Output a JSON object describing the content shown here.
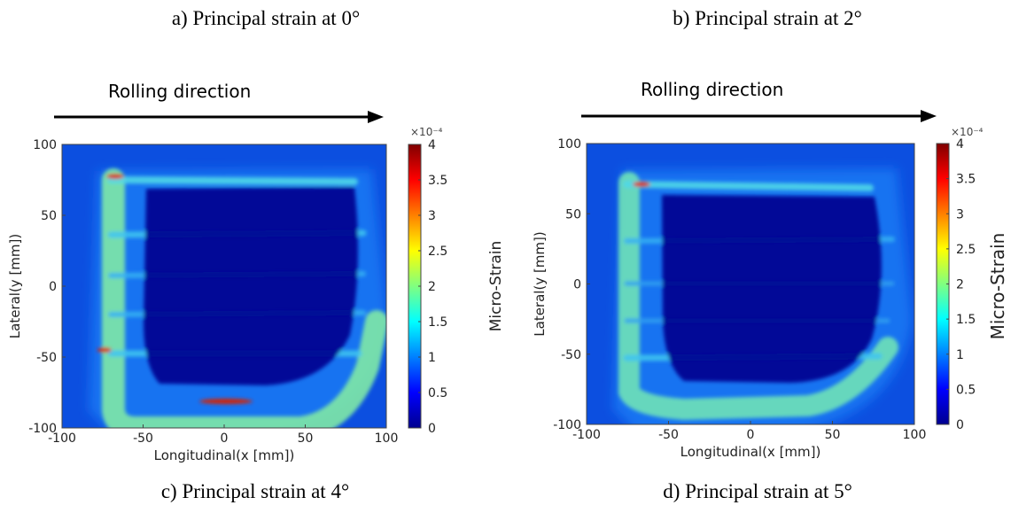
{
  "captions": {
    "top_left": "a)   Principal strain at 0°",
    "top_right": "b)   Principal strain at 2°",
    "bottom_left": "c) Principal strain at 4°",
    "bottom_right": "d)   Principal strain at 5°"
  },
  "colors": {
    "background_field": "#0c4fe0",
    "colormap": [
      "#00008f",
      "#0000ff",
      "#0080ff",
      "#00ffff",
      "#80ff80",
      "#ffff00",
      "#ff8000",
      "#ff0000",
      "#800000"
    ]
  },
  "chart_data": [
    {
      "type": "heatmap",
      "title": "",
      "annotation": "Rolling direction",
      "xlabel": "Longitudinal(x [mm])",
      "ylabel": "Lateral(y [mm])",
      "xlim": [
        -100,
        100
      ],
      "ylim": [
        -100,
        100
      ],
      "xticks": [
        "-100",
        "-50",
        "0",
        "50",
        "100"
      ],
      "yticks": [
        "100",
        "50",
        "0",
        "-50",
        "-100"
      ],
      "colorbar": {
        "label": "Micro-Strain",
        "exponent": "×10⁻⁴",
        "range": [
          0,
          4
        ],
        "ticks": [
          "4",
          "3.5",
          "3",
          "2.5",
          "2",
          "1.5",
          "1",
          "0.5",
          "0"
        ]
      }
    },
    {
      "type": "heatmap",
      "title": "",
      "annotation": "Rolling direction",
      "xlabel": "Longitudinal(x [mm])",
      "ylabel": "Lateral(y [mm])",
      "xlim": [
        -100,
        100
      ],
      "ylim": [
        -100,
        100
      ],
      "xticks": [
        "-100",
        "-50",
        "0",
        "50",
        "100"
      ],
      "yticks": [
        "100",
        "50",
        "0",
        "-50",
        "-100"
      ],
      "colorbar": {
        "label": "Micro-Strain",
        "exponent": "×10⁻⁴",
        "range": [
          0,
          4
        ],
        "ticks": [
          "4",
          "3.5",
          "3",
          "2.5",
          "2",
          "1.5",
          "1",
          "0.5",
          "0"
        ]
      }
    }
  ]
}
